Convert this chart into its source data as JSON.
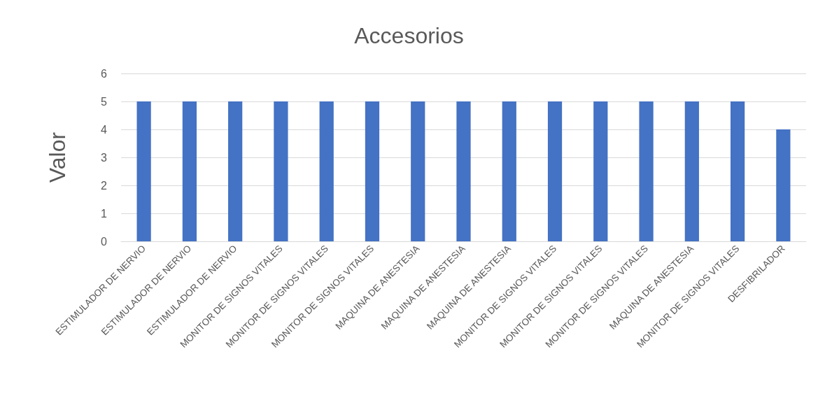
{
  "chart_data": {
    "type": "bar",
    "title": "Accesorios",
    "ylabel": "Valor",
    "categories": [
      "ESTIMULADOR DE NERVIO",
      "ESTIMULADOR DE NERVIO",
      "ESTIMULADOR DE NERVIO",
      "MONITOR DE SIGNOS VITALES",
      "MONITOR DE SIGNOS VITALES",
      "MONITOR DE SIGNOS VITALES",
      "MAQUINA DE ANESTESIA",
      "MAQUINA DE ANESTESIA",
      "MAQUINA DE ANESTESIA",
      "MONITOR DE SIGNOS VITALES",
      "MONITOR DE SIGNOS VITALES",
      "MONITOR DE SIGNOS VITALES",
      "MAQUINA DE ANESTESIA",
      "MONITOR DE SIGNOS VITALES",
      "DESFIBRILADOR"
    ],
    "values": [
      5,
      5,
      5,
      5,
      5,
      5,
      5,
      5,
      5,
      5,
      5,
      5,
      5,
      5,
      4
    ],
    "color": "#4472c4",
    "ylim": [
      0,
      6
    ],
    "yticks": [
      0,
      1,
      2,
      3,
      4,
      5,
      6
    ],
    "grid": "y"
  }
}
